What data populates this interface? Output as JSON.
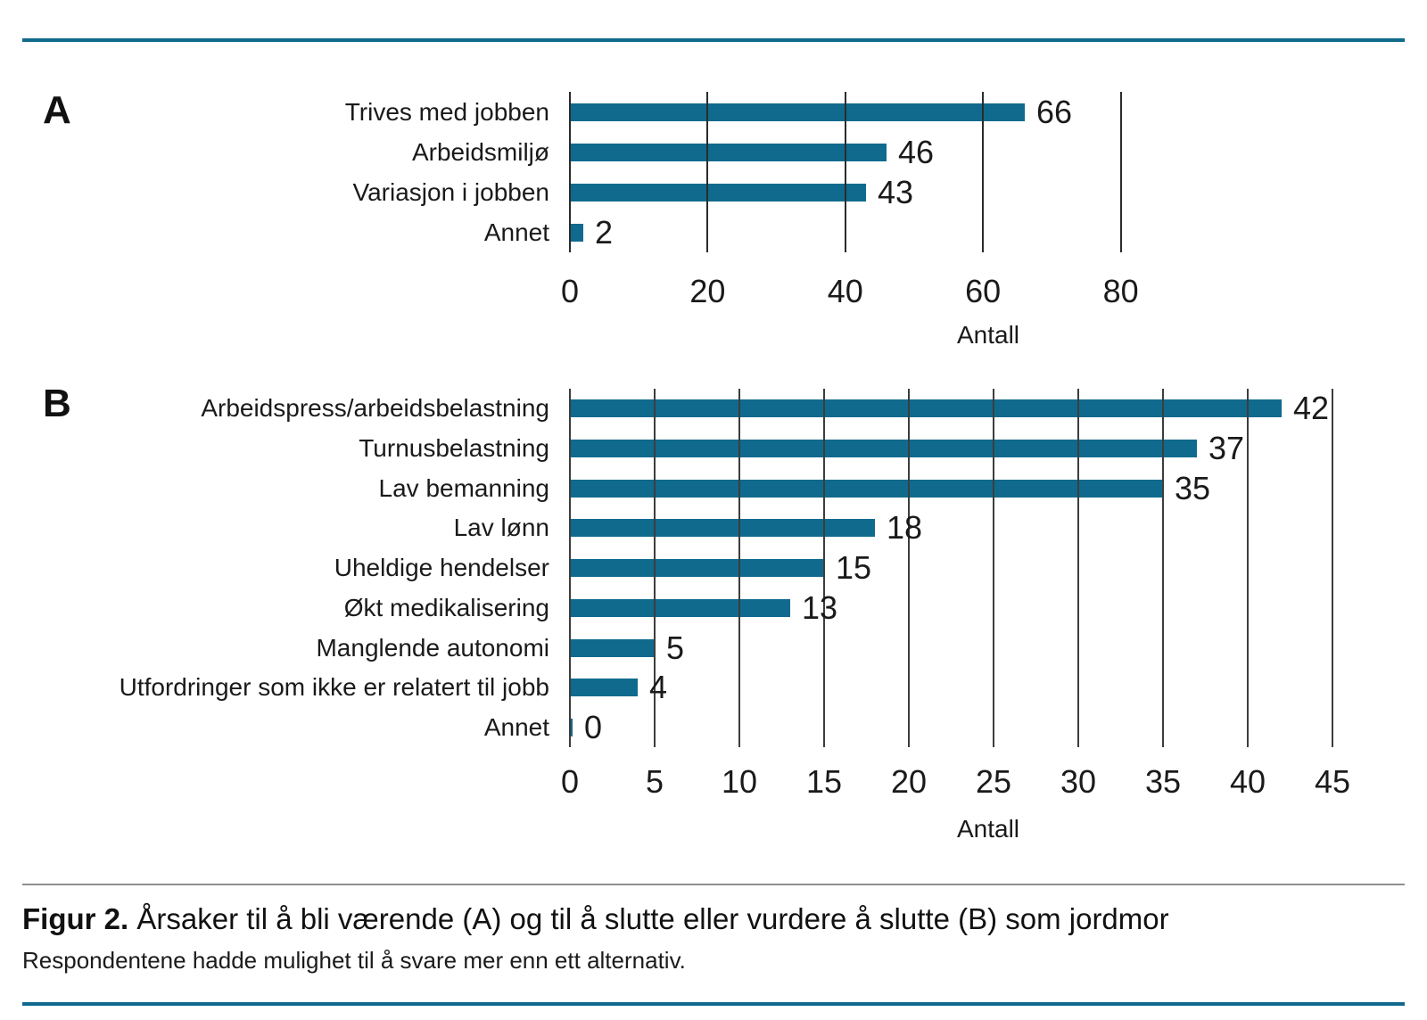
{
  "colors": {
    "accent": "#0f6a8d",
    "bar": "#0f6a8d",
    "grid_panel_a": "#2b2b2b",
    "grid_panel_b": "#3d3d3d",
    "divider_gray": "#8f8f8f",
    "text": "#1a1a1a"
  },
  "chart_data": [
    {
      "panel_label": "A",
      "type": "bar",
      "orientation": "horizontal",
      "title": "",
      "xlabel": "Antall",
      "categories": [
        "Trives med jobben",
        "Arbeidsmiljø",
        "Variasjon i jobben",
        "Annet"
      ],
      "values": [
        66,
        46,
        43,
        2
      ],
      "xticks": [
        0,
        20,
        40,
        60,
        80
      ],
      "xlim": [
        0,
        80
      ],
      "grid": "vertical-on",
      "legend": "none",
      "bar_color": "#0f6a8d"
    },
    {
      "panel_label": "B",
      "type": "bar",
      "orientation": "horizontal",
      "title": "",
      "xlabel": "Antall",
      "categories": [
        "Arbeidspress/arbeidsbelastning",
        "Turnusbelastning",
        "Lav bemanning",
        "Lav lønn",
        "Uheldige hendelser",
        "Økt medikalisering",
        "Manglende autonomi",
        "Utfordringer som ikke er relatert til jobb",
        "Annet"
      ],
      "values": [
        42,
        37,
        35,
        18,
        15,
        13,
        5,
        4,
        0
      ],
      "xticks": [
        0,
        5,
        10,
        15,
        20,
        25,
        30,
        35,
        40,
        45
      ],
      "xlim": [
        0,
        45
      ],
      "grid": "vertical-on",
      "legend": "none",
      "bar_color": "#0f6a8d"
    }
  ],
  "caption": {
    "label": "Figur 2.",
    "text": "Årsaker til å bli værende (A) og til å slutte eller vurdere å slutte (B) som jordmor",
    "note": "Respondentene hadde mulighet til å svare mer enn ett alternativ."
  }
}
